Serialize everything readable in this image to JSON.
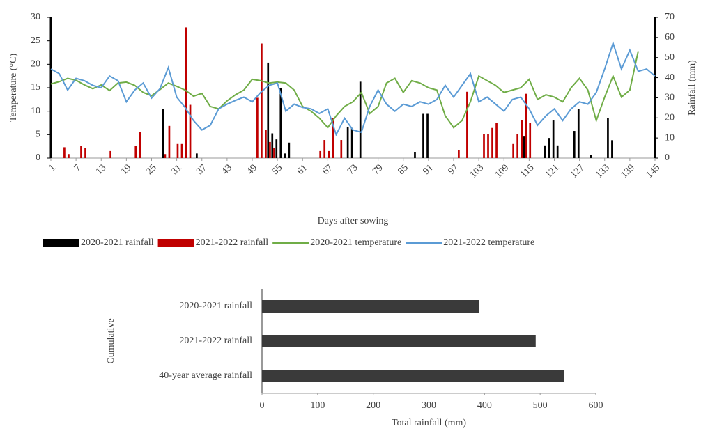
{
  "chart_data": [
    {
      "type": "combo",
      "xlabel": "Days after sowing",
      "ylabel": "Temperature (°C)",
      "y2label": "Rainfall (mm)",
      "xlim": [
        1,
        145
      ],
      "xticks": [
        1,
        7,
        13,
        19,
        25,
        31,
        37,
        43,
        49,
        55,
        61,
        67,
        73,
        79,
        85,
        91,
        97,
        103,
        109,
        115,
        121,
        127,
        133,
        139,
        145
      ],
      "ylim": [
        0,
        30
      ],
      "yticks": [
        0,
        5,
        10,
        15,
        20,
        25,
        30
      ],
      "y2lim": [
        0,
        70
      ],
      "y2ticks": [
        0,
        10,
        20,
        30,
        40,
        50,
        60,
        70
      ],
      "legend": "bottom",
      "series": [
        {
          "name": "2020-2021 rainfall",
          "type": "bar",
          "axis": "y2",
          "color": "#000000",
          "x": [
            28,
            36,
            53,
            54,
            55,
            56,
            57,
            58,
            72,
            73,
            75,
            88,
            90,
            91,
            114,
            119,
            120,
            121,
            122,
            126,
            127,
            130,
            134,
            135
          ],
          "values": [
            24.5,
            2.3,
            47.5,
            12.3,
            9.3,
            35,
            2.3,
            7.7,
            15.6,
            15,
            38,
            3,
            22,
            22,
            10.7,
            6.3,
            10,
            18.7,
            6.3,
            13.5,
            24.5,
            1.4,
            20,
            8.9
          ]
        },
        {
          "name": "2021-2022 rainfall",
          "type": "bar",
          "axis": "y2",
          "color": "#c00000",
          "x": [
            4,
            5,
            8,
            9,
            15,
            21,
            22,
            28,
            29,
            31,
            32,
            33,
            34,
            50,
            51,
            52,
            53,
            54,
            65,
            66,
            67,
            68,
            70,
            98,
            100,
            104,
            105,
            106,
            107,
            111,
            112,
            113,
            114,
            115
          ],
          "values": [
            5.4,
            2,
            6,
            5,
            3.5,
            6,
            13,
            2,
            16,
            7,
            7,
            65,
            26.5,
            30,
            57,
            14,
            8,
            5,
            3.5,
            9,
            3.5,
            20,
            9,
            4,
            33,
            12,
            12,
            15,
            17.5,
            7,
            12,
            19,
            32,
            17.5
          ]
        },
        {
          "name": "2020-2021 temperature",
          "type": "line",
          "color": "#70ad47",
          "x": [
            1,
            3,
            5,
            7,
            9,
            11,
            13,
            15,
            17,
            19,
            21,
            23,
            25,
            27,
            29,
            31,
            33,
            35,
            37,
            39,
            41,
            43,
            45,
            47,
            49,
            51,
            53,
            55,
            57,
            59,
            61,
            63,
            65,
            67,
            69,
            71,
            73,
            75,
            77,
            79,
            81,
            83,
            85,
            87,
            89,
            91,
            93,
            95,
            97,
            99,
            101,
            103,
            105,
            107,
            109,
            111,
            113,
            115,
            117,
            119,
            121,
            123,
            125,
            127,
            129,
            131,
            133,
            135,
            137,
            139,
            141
          ],
          "values": [
            15.8,
            16.3,
            17,
            16.6,
            15.6,
            14.8,
            15.6,
            14.4,
            16,
            16.2,
            15.5,
            14,
            13.3,
            14.6,
            16,
            15.3,
            14.5,
            13.2,
            13.8,
            11,
            10.5,
            12.2,
            13.5,
            14.5,
            16.8,
            16.5,
            16,
            16.2,
            16,
            14.5,
            11,
            10,
            8.5,
            6.5,
            9,
            11,
            12,
            14,
            9.5,
            11,
            16,
            17,
            14,
            16.5,
            16,
            15,
            14.5,
            9,
            6.5,
            8,
            12,
            17.5,
            16.5,
            15.5,
            14,
            14.5,
            15,
            16.8,
            12.5,
            13.5,
            13,
            12,
            15,
            17,
            14.5,
            8,
            13,
            17.5,
            13,
            14.5,
            22.8
          ]
        },
        {
          "name": "2021-2022 temperature",
          "type": "line",
          "color": "#5b9bd5",
          "x": [
            1,
            3,
            5,
            7,
            9,
            11,
            13,
            15,
            17,
            19,
            21,
            23,
            25,
            27,
            29,
            31,
            33,
            35,
            37,
            39,
            41,
            43,
            45,
            47,
            49,
            51,
            53,
            55,
            57,
            59,
            61,
            63,
            65,
            67,
            69,
            71,
            73,
            75,
            77,
            79,
            81,
            83,
            85,
            87,
            89,
            91,
            93,
            95,
            97,
            99,
            101,
            103,
            105,
            107,
            109,
            111,
            113,
            115,
            117,
            119,
            121,
            123,
            125,
            127,
            129,
            131,
            133,
            135,
            137,
            139,
            141,
            143,
            145
          ],
          "values": [
            19,
            18,
            14.5,
            17,
            16.5,
            15.5,
            15,
            17.5,
            16.5,
            12,
            14.5,
            16,
            12.8,
            14.8,
            19.3,
            13,
            10.8,
            8,
            6,
            7,
            10.5,
            11.5,
            12.3,
            13,
            12,
            14,
            15.5,
            16,
            10,
            11.5,
            10.8,
            10.5,
            9.5,
            10.5,
            5,
            8.5,
            6,
            5.5,
            11,
            14.5,
            11.5,
            10,
            11.5,
            11,
            12,
            11.5,
            12.5,
            15.5,
            13,
            15.5,
            18,
            12,
            13,
            11.5,
            10,
            12.5,
            13,
            10.5,
            7,
            9,
            10.5,
            8,
            10.5,
            12,
            11.5,
            14,
            19,
            24.5,
            19,
            23,
            18.5,
            19,
            17.5
          ]
        }
      ]
    },
    {
      "type": "bar",
      "orientation": "horizontal",
      "xlabel": "Total rainfall (mm)",
      "ylabel": "Cumulative",
      "categories": [
        "2020-2021 rainfall",
        "2021-2022 rainfall",
        "40-year average rainfall"
      ],
      "values": [
        390,
        492,
        543
      ],
      "color": "#3a3a3a",
      "xlim": [
        0,
        600
      ],
      "xticks": [
        0,
        100,
        200,
        300,
        400,
        500,
        600
      ]
    }
  ]
}
